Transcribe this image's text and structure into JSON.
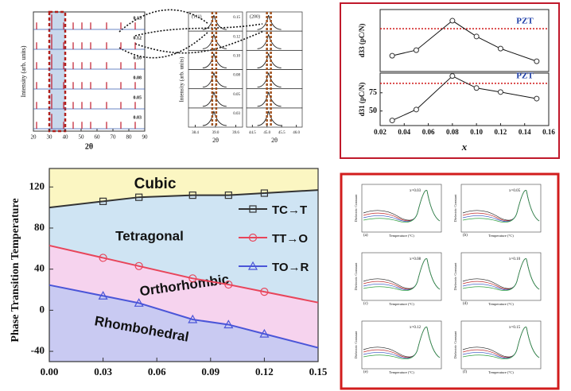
{
  "chart_data": [
    {
      "type": "xrd",
      "y_label": "Intensity (arb. units)",
      "x_label": "2θ",
      "xlim": [
        20,
        90
      ],
      "xticks": [
        20,
        30,
        40,
        50,
        60,
        70,
        80,
        90
      ],
      "labels": [
        "0.15",
        "0.12",
        "0.10",
        "0.08",
        "0.05",
        "0.03"
      ],
      "peaks": [
        22,
        31.5,
        39,
        45,
        50.5,
        56,
        66,
        75,
        84
      ],
      "color": "#c0192b"
    },
    {
      "type": "zoom",
      "title": "(111)",
      "y_label": "Intensity (arb. units)",
      "x_label": "2θ",
      "xlim": [
        38.2,
        39.8
      ],
      "xticks": [
        38.4,
        {
          "value": 39,
          "label": "39.0"
        },
        39.6
      ],
      "labels": [
        "0.15",
        "0.12",
        "0.10",
        "0.08",
        "0.05",
        "0.03"
      ],
      "peaks": [
        38.95
      ]
    },
    {
      "type": "zoom",
      "title": "(200)",
      "x_label": "2θ",
      "xlim": [
        44.3,
        46.2
      ],
      "xticks": [
        44.5,
        {
          "value": 45,
          "label": "45.0"
        },
        45.5,
        {
          "value": 46,
          "label": "46.0"
        }
      ],
      "labels": [],
      "peaks": [
        45.05
      ]
    },
    {
      "type": "piezo",
      "y_label": "d33 (pC/N)",
      "xlim": [
        0.02,
        0.16
      ],
      "ylim": [
        100,
        300
      ],
      "x": [
        0.03,
        0.05,
        0.08,
        0.1,
        0.12,
        0.15
      ],
      "values": [
        151,
        169,
        264,
        213,
        174,
        133
      ],
      "annotation": "PZT",
      "reference": 238,
      "color": "#111"
    },
    {
      "type": "piezo",
      "y_label": "d31 (pC/N)",
      "x_label": "x",
      "xlim": [
        0.02,
        0.16
      ],
      "ylim": [
        30,
        102
      ],
      "xticks": [
        0.02,
        0.04,
        0.06,
        0.08,
        {
          "value": 0.1,
          "label": "0.10"
        },
        0.12,
        0.14,
        0.16
      ],
      "yticks": [
        50,
        75
      ],
      "x": [
        0.03,
        0.05,
        0.08,
        0.1,
        0.12,
        0.15
      ],
      "values": [
        37,
        52,
        98,
        81.5,
        76,
        67
      ],
      "annotation": "PZT",
      "reference": 88,
      "color": "#111"
    },
    {
      "type": "phase",
      "y_label": "Phase Transition Temperature",
      "xlim": [
        0,
        0.15
      ],
      "ylim": [
        -50,
        138
      ],
      "xticks": [
        {
          "value": 0,
          "label": "0.00"
        },
        0.03,
        0.06,
        0.09,
        0.12,
        0.15
      ],
      "yticks": [
        -40,
        0,
        40,
        80,
        120
      ],
      "regions": [
        "Cubic",
        "Tetragonal",
        "Orthorhombic",
        "Rhombohedral"
      ],
      "x": [
        0.03,
        0.05,
        0.08,
        0.1,
        0.12
      ],
      "series": [
        {
          "name": "TC→T",
          "color": "#333333",
          "marker": "square",
          "values": [
            106,
            110,
            112,
            112,
            114
          ]
        },
        {
          "name": "TT→O",
          "color": "#e8455a",
          "marker": "circle",
          "values": [
            51,
            43,
            31,
            25,
            18
          ]
        },
        {
          "name": "TO→R",
          "color": "#4a55d8",
          "marker": "triangle",
          "values": [
            14,
            7,
            -9,
            -14,
            -23
          ]
        }
      ]
    },
    {
      "type": "dielectric",
      "x_label": "Temperature (°C)",
      "y_label": "Dielectric Constant",
      "panels": [
        {
          "label": "(a)",
          "note": "x=0.03"
        },
        {
          "label": "(b)",
          "note": "x=0.05"
        },
        {
          "label": "(c)",
          "note": "x=0.08"
        },
        {
          "label": "(d)",
          "note": "x=0.10"
        },
        {
          "label": "(e)",
          "note": "x=0.12"
        },
        {
          "label": "(f)",
          "note": "x=0.15"
        }
      ]
    }
  ]
}
